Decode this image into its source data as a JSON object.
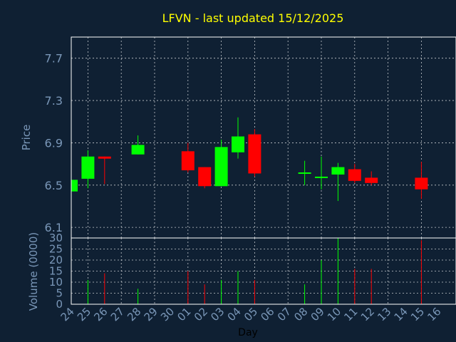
{
  "chart_data": {
    "type": "candlestick",
    "title": "LFVN - last updated 15/12/2025",
    "xlabel": "Day",
    "price_ylabel": "Price",
    "volume_ylabel": "Volume (0000)",
    "x_ticks": [
      "24",
      "25",
      "26",
      "27",
      "28",
      "29",
      "30",
      "01",
      "02",
      "03",
      "04",
      "05",
      "06",
      "07",
      "08",
      "09",
      "10",
      "11",
      "12",
      "13",
      "14",
      "15",
      "16"
    ],
    "price_ylim": [
      6.0,
      7.9
    ],
    "price_ticks": [
      "6.1",
      "6.5",
      "6.9",
      "7.3",
      "7.7"
    ],
    "volume_ylim": [
      0,
      30
    ],
    "volume_ticks": [
      "0",
      "5",
      "10",
      "15",
      "20",
      "25",
      "30"
    ],
    "grid": true,
    "colors": {
      "background": "#0f2033",
      "title": "#ffff00",
      "axis_text": "#7a97b8",
      "up": "#00ff00",
      "down": "#ff0000",
      "grid": "#ffffff"
    },
    "candles": [
      {
        "day": "24",
        "open": 6.44,
        "high": 6.55,
        "low": 6.44,
        "close": 6.55,
        "volume": 0
      },
      {
        "day": "25",
        "open": 6.56,
        "high": 6.83,
        "low": 6.47,
        "close": 6.77,
        "volume": 11
      },
      {
        "day": "26",
        "open": 6.77,
        "high": 6.77,
        "low": 6.51,
        "close": 6.75,
        "volume": 14
      },
      {
        "day": "28",
        "open": 6.79,
        "high": 6.97,
        "low": 6.79,
        "close": 6.88,
        "volume": 7
      },
      {
        "day": "01",
        "open": 6.82,
        "high": 6.9,
        "low": 6.62,
        "close": 6.64,
        "volume": 15
      },
      {
        "day": "02",
        "open": 6.67,
        "high": 6.67,
        "low": 6.47,
        "close": 6.49,
        "volume": 9
      },
      {
        "day": "03",
        "open": 6.49,
        "high": 6.93,
        "low": 6.49,
        "close": 6.86,
        "volume": 11
      },
      {
        "day": "04",
        "open": 6.81,
        "high": 7.14,
        "low": 6.75,
        "close": 6.96,
        "volume": 15
      },
      {
        "day": "05",
        "open": 6.98,
        "high": 7.03,
        "low": 6.58,
        "close": 6.61,
        "volume": 11
      },
      {
        "day": "08",
        "open": 6.61,
        "high": 6.73,
        "low": 6.5,
        "close": 6.62,
        "volume": 9
      },
      {
        "day": "09",
        "open": 6.57,
        "high": 6.77,
        "low": 6.46,
        "close": 6.58,
        "volume": 20
      },
      {
        "day": "10",
        "open": 6.6,
        "high": 6.71,
        "low": 6.35,
        "close": 6.67,
        "volume": 30
      },
      {
        "day": "11",
        "open": 6.65,
        "high": 6.7,
        "low": 6.52,
        "close": 6.54,
        "volume": 16
      },
      {
        "day": "12",
        "open": 6.57,
        "high": 6.63,
        "low": 6.5,
        "close": 6.52,
        "volume": 16
      },
      {
        "day": "15",
        "open": 6.57,
        "high": 6.72,
        "low": 6.37,
        "close": 6.46,
        "volume": 29
      }
    ]
  }
}
